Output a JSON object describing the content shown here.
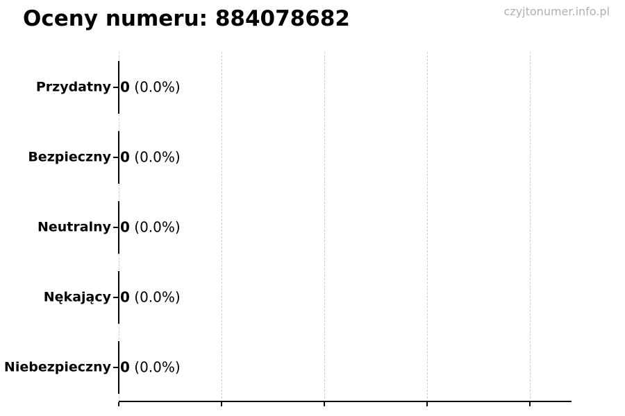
{
  "title": "Oceny numeru: 884078682",
  "watermark": "czyjtonumer.info.pl",
  "chart_data": {
    "type": "bar",
    "orientation": "horizontal",
    "title": "Oceny numeru: 884078682",
    "categories": [
      "Przydatny",
      "Bezpieczny",
      "Neutralny",
      "Nękający",
      "Niebezpieczny"
    ],
    "values": [
      0,
      0,
      0,
      0,
      0
    ],
    "percent_labels": [
      "0.0%",
      "0.0%",
      "0.0%",
      "0.0%",
      "0.0%"
    ],
    "value_labels": [
      "0 (0.0%)",
      "0 (0.0%)",
      "0 (0.0%)",
      "0 (0.0%)",
      "0 (0.0%)"
    ],
    "xlabel": "",
    "ylabel": "",
    "x_ticks": [
      0,
      1,
      2,
      3,
      4
    ],
    "x_tick_labels": [
      "",
      "",
      "",
      "",
      ""
    ],
    "xlim": [
      0,
      4.4
    ],
    "grid": true,
    "legend": "none",
    "bar_edge_color": "#000000",
    "grid_color": "#cccccc",
    "text_color": "#000000",
    "watermark_color": "#b0b0b0",
    "background_color": "#ffffff"
  }
}
